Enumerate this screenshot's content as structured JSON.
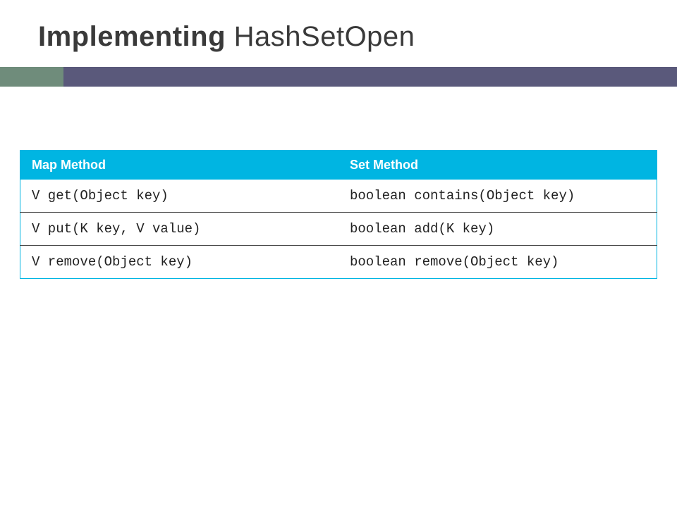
{
  "title": {
    "bold": "Implementing",
    "regular": " HashSetOpen"
  },
  "divider": {
    "accent_color": "#6f8c7b",
    "main_color": "#5a597b"
  },
  "table": {
    "header_bg": "#00b5e2",
    "border_color": "#00b5e2",
    "columns": [
      {
        "label": "Map Method"
      },
      {
        "label": "Set Method"
      }
    ],
    "rows": [
      {
        "map": "V get(Object key)",
        "set": "boolean contains(Object key)"
      },
      {
        "map": "V put(K key, V value)",
        "set": "boolean add(K key)"
      },
      {
        "map": "V remove(Object key)",
        "set": "boolean remove(Object key)"
      }
    ]
  }
}
